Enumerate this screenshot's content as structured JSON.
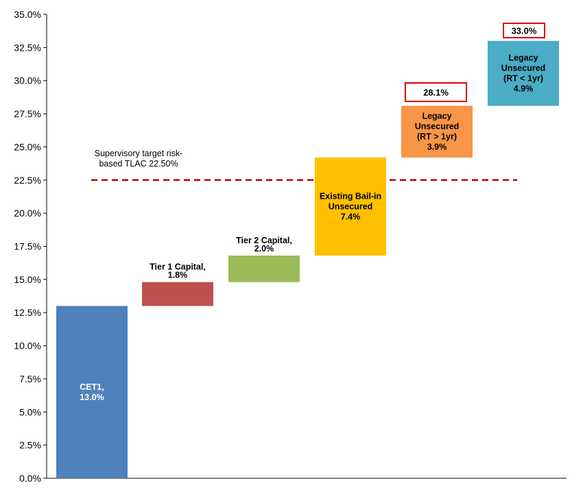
{
  "chart_data": {
    "type": "bar",
    "subtype": "waterfall",
    "ylim": [
      0,
      35
    ],
    "ytick_step": 2.5,
    "ytick_labels": [
      "0.0%",
      "2.5%",
      "5.0%",
      "7.5%",
      "10.0%",
      "12.5%",
      "15.0%",
      "17.5%",
      "20.0%",
      "22.5%",
      "25.0%",
      "27.5%",
      "30.0%",
      "32.5%",
      "35.0%"
    ],
    "grid": false,
    "bars": [
      {
        "label_lines": [
          "CET1,",
          "13.0%"
        ],
        "start": 0,
        "end": 13.0,
        "color": "#4F81BD",
        "label_color": "#ffffff"
      },
      {
        "label_lines": [
          "Tier 1 Capital,",
          "1.8%"
        ],
        "start": 13.0,
        "end": 14.8,
        "color": "#C0504D",
        "label_color": "#000000"
      },
      {
        "label_lines": [
          "Tier 2 Capital,",
          "2.0%"
        ],
        "start": 14.8,
        "end": 16.8,
        "color": "#9BBB59",
        "label_color": "#000000"
      },
      {
        "label_lines": [
          "Existing Bail-in",
          "Unsecured",
          "7.4%"
        ],
        "start": 16.8,
        "end": 24.2,
        "color": "#FFC000",
        "label_color": "#000000"
      },
      {
        "label_lines": [
          "Legacy",
          "Unsecured",
          "(RT > 1yr)",
          "3.9%"
        ],
        "start": 24.2,
        "end": 28.1,
        "color": "#F79646",
        "label_color": "#000000"
      },
      {
        "label_lines": [
          "Legacy",
          "Unsecured",
          "(RT < 1yr)",
          "4.9%"
        ],
        "start": 28.1,
        "end": 33.0,
        "color": "#4BACC6",
        "label_color": "#000000"
      }
    ],
    "totals": [
      {
        "bar_index": 4,
        "text": "28.1%"
      },
      {
        "bar_index": 5,
        "text": "33.0%"
      }
    ],
    "reference_line": {
      "value": 22.5,
      "color": "#C00000",
      "style": "dashed",
      "label_lines": [
        "Supervisory target risk-",
        "based TLAC 22.50%"
      ]
    },
    "total_box_color": "#E00000"
  }
}
